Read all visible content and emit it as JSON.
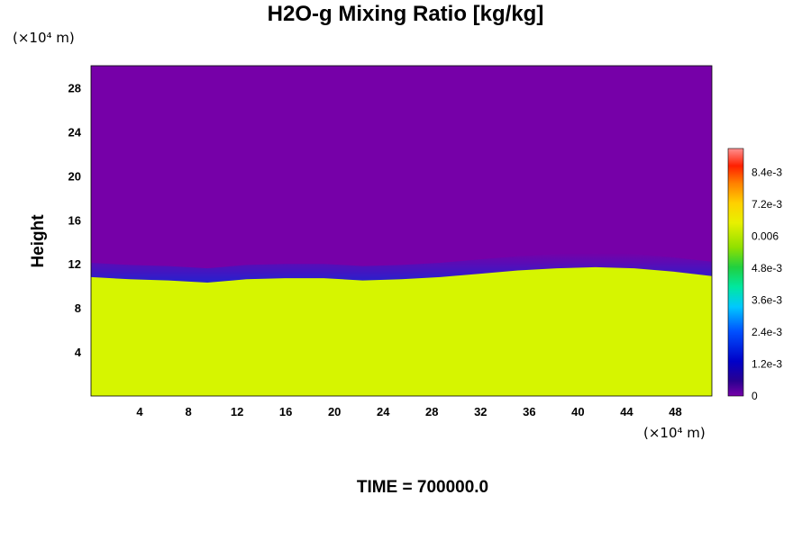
{
  "chart_data": {
    "type": "heatmap",
    "title": "H2O-g Mixing Ratio [kg/kg]",
    "ylabel": "Height",
    "xlabel": "",
    "x_unit": "(×10⁴ m)",
    "y_unit": "(×10⁴ m)",
    "x_ticks": [
      4,
      8,
      12,
      16,
      20,
      24,
      28,
      32,
      36,
      40,
      44,
      48
    ],
    "y_ticks": [
      4,
      8,
      12,
      16,
      20,
      24,
      28
    ],
    "xlim": [
      0,
      51
    ],
    "ylim": [
      0,
      30
    ],
    "colorbar": {
      "range": [
        0,
        0.0093
      ],
      "tick_values": [
        0,
        0.0012,
        0.0024,
        0.0036,
        0.0048,
        0.006,
        0.0072,
        0.0084
      ],
      "tick_labels": [
        "0",
        "1.2e-3",
        "2.4e-3",
        "3.6e-3",
        "4.8e-3",
        "0.006",
        "7.2e-3",
        "8.4e-3"
      ]
    },
    "field_description": {
      "moist_layer_top_height": [
        11.5,
        11.3,
        11.2,
        11.0,
        11.3,
        11.4,
        11.4,
        11.2,
        11.3,
        11.5,
        11.8,
        12.1,
        12.3,
        12.4,
        12.3,
        12.0,
        11.6
      ],
      "upper_value": 0.0,
      "lower_value": 0.0063
    },
    "colors": {
      "upper": "#7600a8",
      "lower": "#d6f500",
      "transition": [
        "#0000d0",
        "#0040ff",
        "#00b0ff",
        "#00e0b0",
        "#40e040"
      ]
    },
    "annotation": "TIME = 700000.0"
  }
}
